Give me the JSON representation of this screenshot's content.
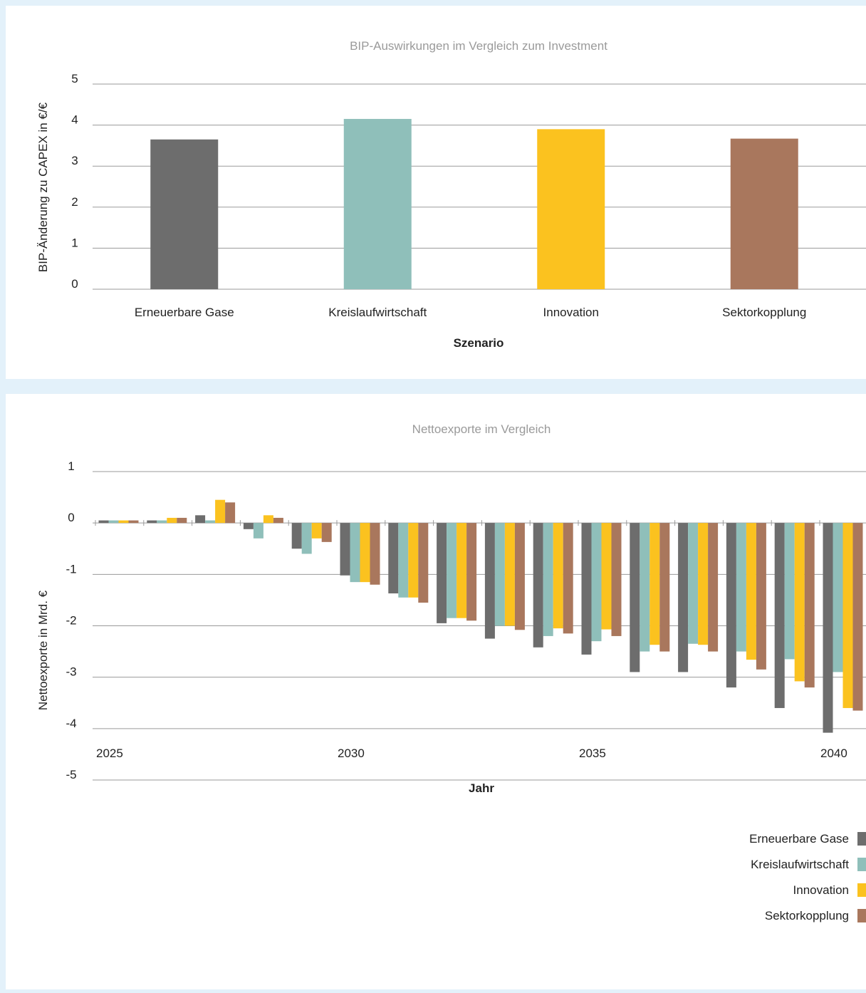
{
  "colors": {
    "Erneuerbare Gase": "#6d6d6d",
    "Kreislaufwirtschaft": "#8fbfba",
    "Innovation": "#fbc21f",
    "Sektorkopplung": "#a9775d",
    "grid": "#9a9a9a",
    "title": "#9a9a9a"
  },
  "chart_data": [
    {
      "type": "bar",
      "title": "BIP-Auswirkungen im Vergleich zum Investment",
      "xlabel": "Szenario",
      "ylabel": "BIP-Änderung zu CAPEX in €/€",
      "ylim": [
        0,
        5
      ],
      "yticks": [
        "0",
        "1",
        "2",
        "3",
        "4",
        "5"
      ],
      "categories": [
        "Erneuerbare Gase",
        "Kreislaufwirtschaft",
        "Innovation",
        "Sektorkopplung"
      ],
      "values": [
        3.65,
        4.15,
        3.9,
        3.67
      ],
      "grid": true
    },
    {
      "type": "bar",
      "title": "Nettoexporte im Vergleich",
      "xlabel": "Jahr",
      "ylabel": "Nettoexporte in Mrd. €",
      "ylim": [
        -5,
        1
      ],
      "yticks": [
        "1",
        "0",
        "-1",
        "-2",
        "-3",
        "-4",
        "-5"
      ],
      "categories": [
        "2025",
        "2026",
        "2027",
        "2028",
        "2029",
        "2030",
        "2031",
        "2032",
        "2033",
        "2034",
        "2035",
        "2036",
        "2037",
        "2038",
        "2039",
        "2040"
      ],
      "xtick_labels": [
        "2025",
        "2030",
        "2035",
        "2040"
      ],
      "legend_position": "bottom-right",
      "grid": true,
      "series": [
        {
          "name": "Erneuerbare Gase",
          "values": [
            0.05,
            0.05,
            0.15,
            -0.12,
            -0.5,
            -1.02,
            -1.37,
            -1.95,
            -2.25,
            -2.42,
            -2.56,
            -2.9,
            -2.9,
            -3.2,
            -3.6,
            -4.08
          ]
        },
        {
          "name": "Kreislaufwirtschaft",
          "values": [
            0.05,
            0.05,
            0.05,
            -0.3,
            -0.6,
            -1.15,
            -1.45,
            -1.85,
            -2.0,
            -2.2,
            -2.3,
            -2.5,
            -2.35,
            -2.5,
            -2.65,
            -2.9
          ]
        },
        {
          "name": "Innovation",
          "values": [
            0.05,
            0.1,
            0.45,
            0.15,
            -0.3,
            -1.15,
            -1.45,
            -1.85,
            -2.0,
            -2.05,
            -2.07,
            -2.37,
            -2.37,
            -2.66,
            -3.08,
            -3.6
          ]
        },
        {
          "name": "Sektorkopplung",
          "values": [
            0.05,
            0.1,
            0.4,
            0.1,
            -0.37,
            -1.2,
            -1.55,
            -1.9,
            -2.08,
            -2.15,
            -2.2,
            -2.5,
            -2.5,
            -2.85,
            -3.2,
            -3.65
          ]
        }
      ]
    }
  ]
}
